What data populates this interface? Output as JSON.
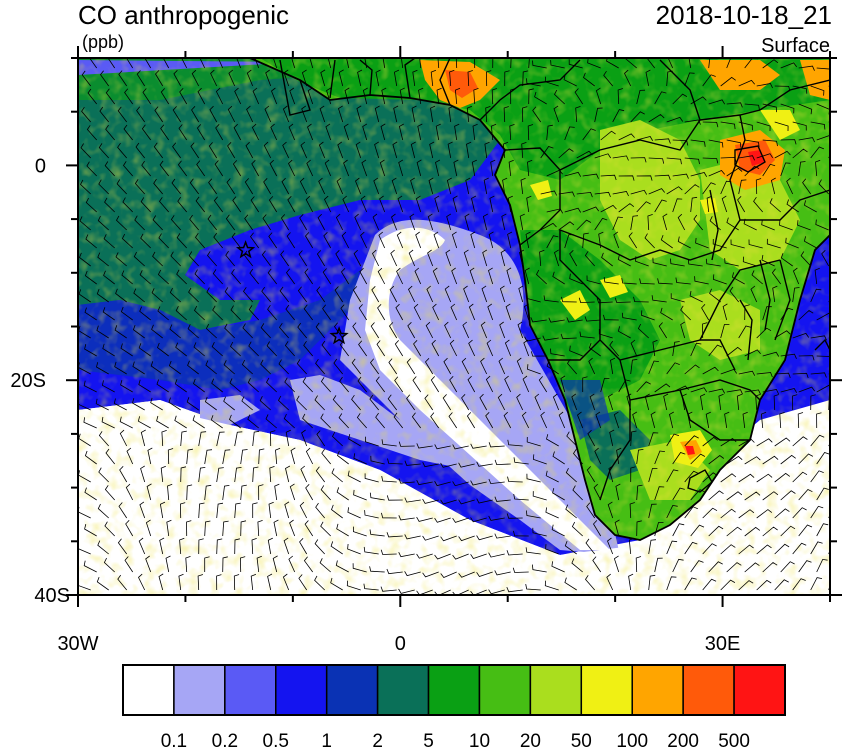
{
  "header": {
    "field_title": "CO anthropogenic",
    "units": "(ppb)",
    "datetime": "2018-10-18_21",
    "level": "Surface"
  },
  "map": {
    "lon_range": [
      -30,
      40
    ],
    "lat_range": [
      -40,
      10
    ],
    "x_ticks": [
      {
        "lon": -30,
        "label": "30W"
      },
      {
        "lon": 0,
        "label": "0"
      },
      {
        "lon": 30,
        "label": "30E"
      }
    ],
    "y_ticks": [
      {
        "lat": 0,
        "label": "0"
      },
      {
        "lat": -20,
        "label": "20S"
      },
      {
        "lat": -40,
        "label": "40S"
      }
    ],
    "minor_lon_step": 10,
    "minor_lat_step": 5,
    "stations": [
      {
        "lon": -14.4,
        "lat": -7.9
      },
      {
        "lon": -5.7,
        "lat": -15.9
      }
    ]
  },
  "colorbar": {
    "levels": [
      "0.1",
      "0.2",
      "0.5",
      "1",
      "2",
      "5",
      "10",
      "20",
      "50",
      "100",
      "200",
      "500"
    ],
    "colors": [
      "#ffffff",
      "#a6a6f5",
      "#5a5af5",
      "#1414f0",
      "#0a32b4",
      "#0a7058",
      "#0aa014",
      "#46be14",
      "#aade1e",
      "#f0f014",
      "#ffa500",
      "#ff5a0a",
      "#ff1414"
    ]
  }
}
